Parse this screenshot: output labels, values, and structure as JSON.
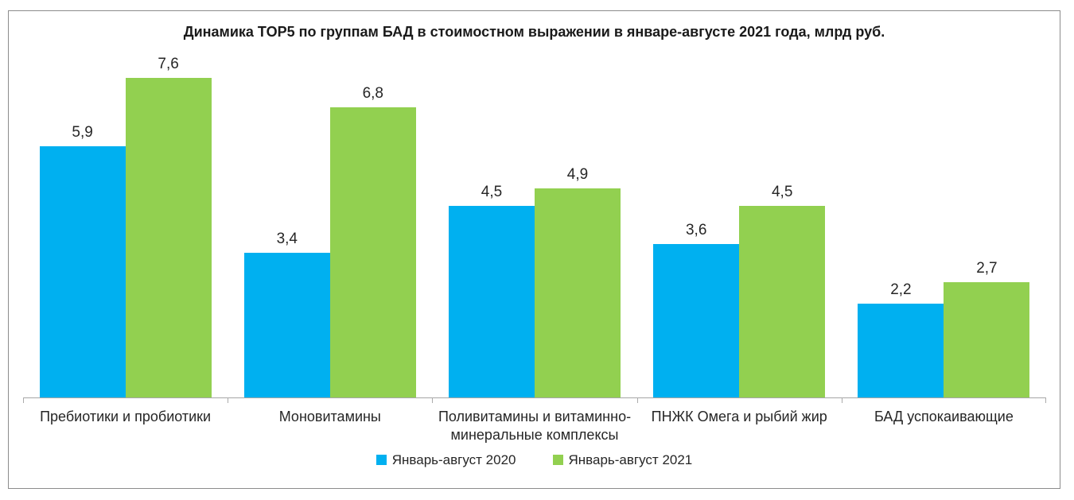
{
  "chart_data": {
    "type": "bar",
    "title": "Динамика TOP5 по группам БАД в стоимостном выражении в январе-августе 2021 года, млрд руб.",
    "categories": [
      "Пребиотики и пробиотики",
      "Моновитамины",
      "Поливитамины и витаминно-минеральные комплексы",
      "ПНЖК Омега и рыбий жир",
      "БАД успокаивающие"
    ],
    "series": [
      {
        "name": "Январь-август 2020",
        "color": "#00B0F0",
        "values": [
          5.9,
          3.4,
          4.5,
          3.6,
          2.2
        ],
        "labels": [
          "5,9",
          "3,4",
          "4,5",
          "3,6",
          "2,2"
        ]
      },
      {
        "name": "Январь-август 2021",
        "color": "#92D050",
        "values": [
          7.6,
          6.8,
          4.9,
          4.5,
          2.7
        ],
        "labels": [
          "7,6",
          "6,8",
          "4,9",
          "4,5",
          "2,7"
        ]
      }
    ],
    "xlabel": "",
    "ylabel": "",
    "ylim": [
      0,
      8
    ],
    "grid": false,
    "legend_position": "bottom",
    "styles": {
      "background": "#FFFFFF",
      "frame_border_color": "#8C8C8C",
      "axis_color": "#A6A6A6",
      "tick_color": "#ABABAB",
      "text_color": "#262626",
      "title_color": "#1A1A1A"
    }
  }
}
